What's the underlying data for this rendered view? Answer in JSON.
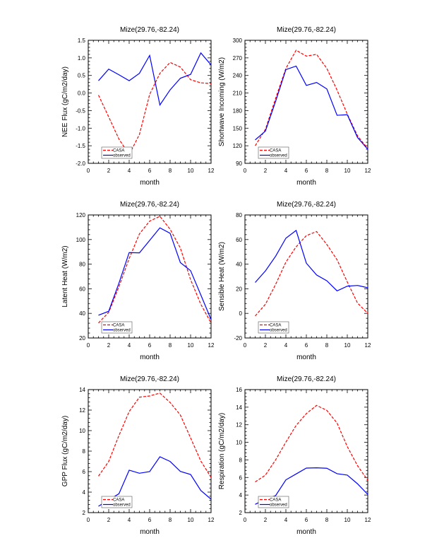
{
  "figure": {
    "panel_count": 6,
    "layout": "3 rows x 2 columns"
  },
  "chart_data": [
    {
      "type": "line",
      "title": "Mize(29.76,-82.24)",
      "xlabel": "month",
      "ylabel": "NEE Flux (gC/m2/day)",
      "xlim": [
        0,
        12
      ],
      "ylim": [
        -2.0,
        1.5
      ],
      "xticks": [
        0,
        2,
        4,
        6,
        8,
        10,
        12
      ],
      "xtick_labels": [
        "0",
        "2",
        "4",
        "6",
        "8",
        "10",
        "12"
      ],
      "yticks": [
        -2.0,
        -1.5,
        -1.0,
        -0.5,
        0.0,
        0.5,
        1.0,
        1.5
      ],
      "ytick_labels": [
        "-2.0",
        "-1.5",
        "-1.0",
        "-0.5",
        "0.0",
        "0.5",
        "1.0",
        "1.5"
      ],
      "legend_position": "bottom-left",
      "grid": false,
      "x": [
        1,
        2,
        3,
        4,
        5,
        6,
        7,
        8,
        9,
        10,
        11,
        12
      ],
      "series": [
        {
          "name": "CASA",
          "color": "#ff0000",
          "style": "dashed",
          "values": [
            -0.06,
            -0.68,
            -1.31,
            -1.75,
            -1.18,
            -0.04,
            0.56,
            0.87,
            0.74,
            0.38,
            0.29,
            0.27
          ]
        },
        {
          "name": "observed",
          "color": "#0000ff",
          "style": "solid",
          "values": [
            0.35,
            0.68,
            0.52,
            0.35,
            0.56,
            1.07,
            -0.34,
            0.09,
            0.42,
            0.53,
            1.14,
            0.8
          ]
        }
      ]
    },
    {
      "type": "line",
      "title": "Mize(29.76,-82.24)",
      "xlabel": "month",
      "ylabel": "Shortwave Incoming (W/m2)",
      "xlim": [
        0,
        12
      ],
      "ylim": [
        90,
        300
      ],
      "xticks": [
        0,
        2,
        4,
        6,
        8,
        10,
        12
      ],
      "xtick_labels": [
        "0",
        "2",
        "4",
        "6",
        "8",
        "10",
        "12"
      ],
      "yticks": [
        90,
        120,
        150,
        180,
        210,
        240,
        270,
        300
      ],
      "ytick_labels": [
        "90",
        "120",
        "150",
        "180",
        "210",
        "240",
        "270",
        "300"
      ],
      "legend_position": "bottom-left",
      "grid": false,
      "x": [
        1,
        2,
        3,
        4,
        5,
        6,
        7,
        8,
        9,
        10,
        11,
        12
      ],
      "series": [
        {
          "name": "CASA",
          "color": "#ff0000",
          "style": "dashed",
          "values": [
            120,
            148,
            201,
            252,
            283,
            273,
            276,
            252,
            215,
            174,
            137,
            115
          ]
        },
        {
          "name": "observed",
          "color": "#0000ff",
          "style": "solid",
          "values": [
            130,
            145,
            196,
            250,
            256,
            223,
            228,
            217,
            172,
            173,
            134,
            114
          ]
        }
      ]
    },
    {
      "type": "line",
      "title": "Mize(29.76,-82.24)",
      "xlabel": "month",
      "ylabel": "Latent Heat (W/m2)",
      "xlim": [
        0,
        12
      ],
      "ylim": [
        20,
        120
      ],
      "xticks": [
        0,
        2,
        4,
        6,
        8,
        10,
        12
      ],
      "xtick_labels": [
        "0",
        "2",
        "4",
        "6",
        "8",
        "10",
        "12"
      ],
      "yticks": [
        20,
        40,
        60,
        80,
        100,
        120
      ],
      "ytick_labels": [
        "20",
        "40",
        "60",
        "80",
        "100",
        "120"
      ],
      "legend_position": "bottom-left",
      "grid": false,
      "x": [
        1,
        2,
        3,
        4,
        5,
        6,
        7,
        8,
        9,
        10,
        11,
        12
      ],
      "series": [
        {
          "name": "CASA",
          "color": "#ff0000",
          "style": "dashed",
          "values": [
            32.2,
            40.8,
            61.7,
            84.6,
            104.6,
            115,
            118.9,
            108.4,
            93.1,
            67.4,
            47.4,
            32.2
          ]
        },
        {
          "name": "observed",
          "color": "#0000ff",
          "style": "solid",
          "values": [
            38.5,
            41.7,
            64.6,
            89.4,
            89.2,
            99.3,
            109.5,
            105.1,
            81.3,
            74.7,
            55,
            35
          ]
        }
      ]
    },
    {
      "type": "line",
      "title": "Mize(29.76,-82.24)",
      "xlabel": "month",
      "ylabel": "Sensible Heat (W/m2)",
      "xlim": [
        0,
        12
      ],
      "ylim": [
        -20,
        80
      ],
      "xticks": [
        0,
        2,
        4,
        6,
        8,
        10,
        12
      ],
      "xtick_labels": [
        "0",
        "2",
        "4",
        "6",
        "8",
        "10",
        "12"
      ],
      "yticks": [
        -20,
        0,
        20,
        40,
        60,
        80
      ],
      "ytick_labels": [
        "-20",
        "0",
        "20",
        "40",
        "60",
        "80"
      ],
      "legend_position": "bottom-left",
      "grid": false,
      "x": [
        1,
        2,
        3,
        4,
        5,
        6,
        7,
        8,
        9,
        10,
        11,
        12
      ],
      "series": [
        {
          "name": "CASA",
          "color": "#ff0000",
          "style": "dashed",
          "values": [
            -2.1,
            7.4,
            23.6,
            41.7,
            54.1,
            63.2,
            66.5,
            56,
            43.6,
            25.5,
            8.4,
            0
          ]
        },
        {
          "name": "observed",
          "color": "#0000ff",
          "style": "solid",
          "values": [
            25.1,
            34.5,
            46.5,
            61.1,
            67.4,
            40.8,
            31.2,
            26.5,
            18.3,
            22.1,
            22.7,
            20.8
          ]
        }
      ]
    },
    {
      "type": "line",
      "title": "Mize(29.76,-82.24)",
      "xlabel": "month",
      "ylabel": "GPP Flux (gC/m2/day)",
      "xlim": [
        0,
        12
      ],
      "ylim": [
        2,
        14
      ],
      "xticks": [
        0,
        2,
        4,
        6,
        8,
        10,
        12
      ],
      "xtick_labels": [
        "0",
        "2",
        "4",
        "6",
        "8",
        "10",
        "12"
      ],
      "yticks": [
        2,
        4,
        6,
        8,
        10,
        12,
        14
      ],
      "ytick_labels": [
        "2",
        "4",
        "6",
        "8",
        "10",
        "12",
        "14"
      ],
      "legend_position": "bottom-left",
      "grid": false,
      "x": [
        1,
        2,
        3,
        4,
        5,
        6,
        7,
        8,
        9,
        10,
        11,
        12
      ],
      "series": [
        {
          "name": "CASA",
          "color": "#ff0000",
          "style": "dashed",
          "values": [
            5.56,
            6.99,
            9.52,
            11.86,
            13.26,
            13.38,
            13.66,
            12.74,
            11.52,
            9.29,
            7.03,
            5.45
          ]
        },
        {
          "name": "observed",
          "color": "#0000ff",
          "style": "solid",
          "values": [
            2.62,
            3.24,
            3.84,
            6.14,
            5.84,
            6.0,
            7.45,
            6.99,
            6.02,
            5.72,
            4.16,
            3.31
          ]
        }
      ]
    },
    {
      "type": "line",
      "title": "Mize(29.76,-82.24)",
      "xlabel": "month",
      "ylabel": "Respiration (gC/m2/day)",
      "xlim": [
        0,
        12
      ],
      "ylim": [
        2,
        16
      ],
      "xticks": [
        0,
        2,
        4,
        6,
        8,
        10,
        12
      ],
      "xtick_labels": [
        "0",
        "2",
        "4",
        "6",
        "8",
        "10",
        "12"
      ],
      "yticks": [
        2,
        4,
        6,
        8,
        10,
        12,
        14,
        16
      ],
      "ytick_labels": [
        "2",
        "4",
        "6",
        "8",
        "10",
        "12",
        "14",
        "16"
      ],
      "legend_position": "bottom-left",
      "grid": false,
      "x": [
        1,
        2,
        3,
        4,
        5,
        6,
        7,
        8,
        9,
        10,
        11,
        12
      ],
      "series": [
        {
          "name": "CASA",
          "color": "#ff0000",
          "style": "dashed",
          "values": [
            5.49,
            6.27,
            8.01,
            10.02,
            11.92,
            13.27,
            14.2,
            13.64,
            12.19,
            9.51,
            7.34,
            5.68
          ]
        },
        {
          "name": "observed",
          "color": "#0000ff",
          "style": "solid",
          "values": [
            2.94,
            3.53,
            3.94,
            5.73,
            6.4,
            7.07,
            7.1,
            7.05,
            6.43,
            6.27,
            5.28,
            4.07
          ]
        }
      ]
    }
  ]
}
